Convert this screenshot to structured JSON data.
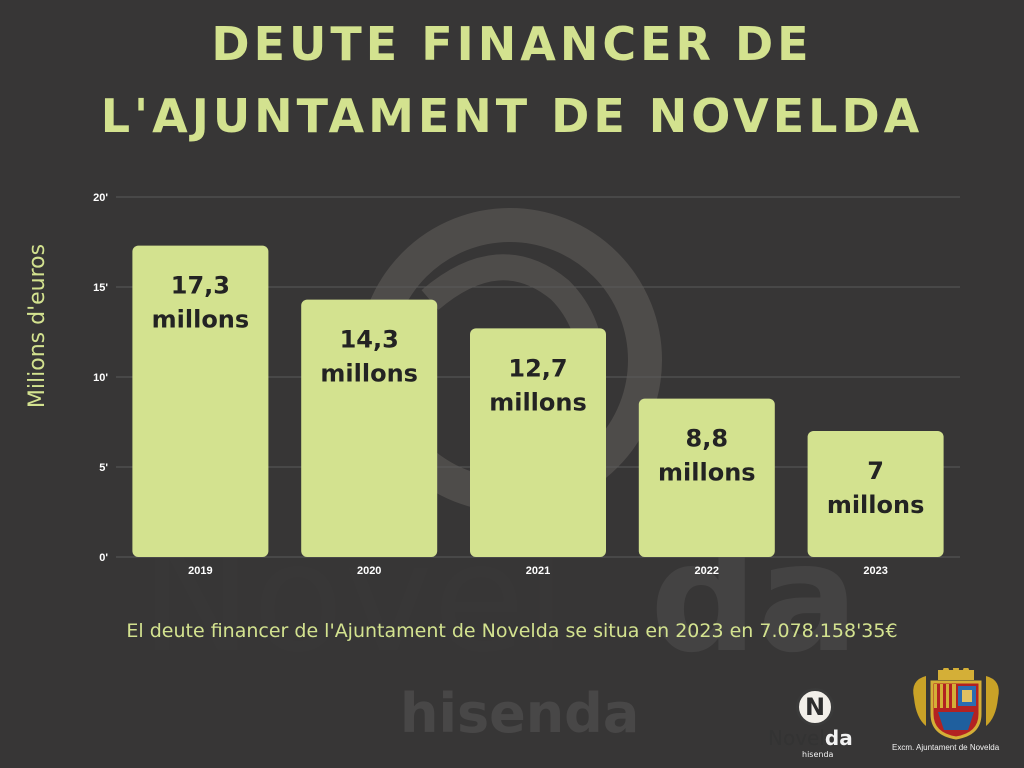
{
  "title_line1": "DEUTE FINANCER DE",
  "title_line2": "L'AJUNTAMENT DE NOVELDA",
  "footnote": "El deute financer de l'Ajuntament de Novelda se situa en 2023 en 7.078.158'35€",
  "watermark": {
    "brand_left": "Novel",
    "brand_right": "da",
    "sub": "hisenda"
  },
  "logos": {
    "novelda": {
      "letter": "N",
      "word_left": "Novel",
      "word_right": "da",
      "sub": "hisenda"
    },
    "ajuntament": {
      "caption": "Excm. Ajuntament de Novelda"
    }
  },
  "colors": {
    "background": "#373636",
    "accent": "#d3e28f",
    "bar": "#d3e28f",
    "bar_text": "#232323"
  },
  "chart_data": {
    "type": "bar",
    "title": "DEUTE FINANCER DE L'AJUNTAMENT DE NOVELDA",
    "xlabel": "",
    "ylabel": "Milions d'euros",
    "categories": [
      "2019",
      "2020",
      "2021",
      "2022",
      "2023"
    ],
    "values": [
      17.3,
      14.3,
      12.7,
      8.8,
      7
    ],
    "data_labels": [
      [
        "17,3",
        "millons"
      ],
      [
        "14,3",
        "millons"
      ],
      [
        "12,7",
        "millons"
      ],
      [
        "8,8",
        "millons"
      ],
      [
        "7",
        "millons"
      ]
    ],
    "yticks": [
      0,
      5,
      10,
      15,
      20
    ],
    "ytick_labels": [
      "0'",
      "5'",
      "10'",
      "15'",
      "20'"
    ],
    "ylim": [
      0,
      20
    ],
    "grid": true,
    "legend": "none"
  }
}
